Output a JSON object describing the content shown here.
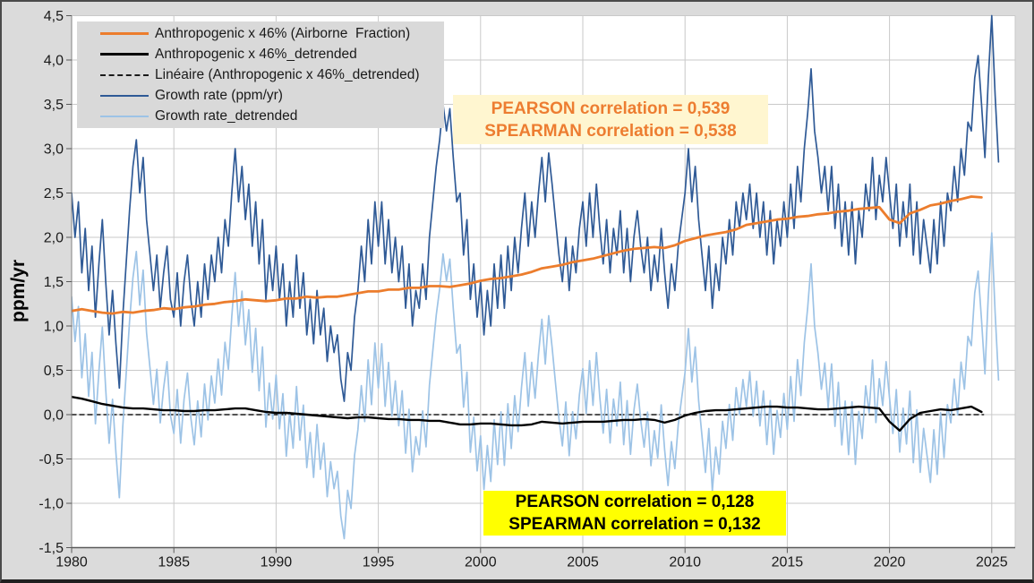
{
  "figure": {
    "background": "#DBDBDB",
    "plot_background": "#FFFFFF",
    "gridline_color": "#C9C9C9",
    "axis_line_color": "#808080",
    "tick_color": "#595959",
    "tick_text_color": "#1a1a1a",
    "y_axis_title": "ppm/yr"
  },
  "legend": {
    "items": [
      {
        "label": "Anthropogenic x 46% (Airborne  Fraction)",
        "color": "#EC7D2D",
        "style": "solid",
        "thickness": 3
      },
      {
        "label": "Anthropogenic x 46%_detrended",
        "color": "#000000",
        "style": "solid",
        "thickness": 3
      },
      {
        "label": "Linéaire (Anthropogenic x 46%_detrended)",
        "color": "#1a1a1a",
        "style": "dashed",
        "thickness": 2
      },
      {
        "label": "Growth rate (ppm/yr)",
        "color": "#2F5A96",
        "style": "solid",
        "thickness": 2
      },
      {
        "label": "Growth rate_detrended",
        "color": "#9DC3E6",
        "style": "solid",
        "thickness": 2
      }
    ]
  },
  "annotations": [
    {
      "line1": "PEARSON correlation = 0,539",
      "line2": "SPEARMAN correlation = 0,538",
      "text_color": "#ED7D31",
      "background": "#FFF6D0"
    },
    {
      "line1": "PEARSON correlation = 0,128",
      "line2": "SPEARMAN correlation = 0,132",
      "text_color": "#000000",
      "background": "#FFFF00"
    }
  ],
  "chart_data": {
    "type": "line",
    "title": "",
    "ylabel": "ppm/yr",
    "grid": true,
    "x_axis": {
      "min": 1980,
      "max": 2026.2
    },
    "y_axis": {
      "min": -1.5,
      "max": 4.5,
      "tick_step": 0.5
    },
    "x_ticks": [
      {
        "value": 1980,
        "label": "1980"
      },
      {
        "value": 1985,
        "label": "1985"
      },
      {
        "value": 1990,
        "label": "1990"
      },
      {
        "value": 1995,
        "label": "1995"
      },
      {
        "value": 2000,
        "label": "2000"
      },
      {
        "value": 2005,
        "label": "2005"
      },
      {
        "value": 2010,
        "label": "2010"
      },
      {
        "value": 2015,
        "label": "2015"
      },
      {
        "value": 2020,
        "label": "2020"
      },
      {
        "value": 2025,
        "label": "2025"
      }
    ],
    "y_ticks": [
      {
        "value": 4.5,
        "label": "4,5"
      },
      {
        "value": 4.0,
        "label": "4,0"
      },
      {
        "value": 3.5,
        "label": "3,5"
      },
      {
        "value": 3.0,
        "label": "3,0"
      },
      {
        "value": 2.5,
        "label": "2,5"
      },
      {
        "value": 2.0,
        "label": "2,0"
      },
      {
        "value": 1.5,
        "label": "1,5"
      },
      {
        "value": 1.0,
        "label": "1,0"
      },
      {
        "value": 0.5,
        "label": "0,5"
      },
      {
        "value": 0.0,
        "label": "0,0"
      },
      {
        "value": -0.5,
        "label": "-0,5"
      },
      {
        "value": -1.0,
        "label": "-1,0"
      },
      {
        "value": -1.5,
        "label": "-1,5"
      }
    ],
    "series": [
      {
        "name": "Anthropogenic x 46% (Airborne  Fraction)",
        "color": "#EC7D2D",
        "width": 2.8,
        "start": 1980,
        "step": 0.5,
        "values": [
          1.17,
          1.19,
          1.17,
          1.15,
          1.14,
          1.16,
          1.15,
          1.17,
          1.18,
          1.2,
          1.19,
          1.21,
          1.22,
          1.24,
          1.25,
          1.27,
          1.28,
          1.3,
          1.29,
          1.28,
          1.29,
          1.31,
          1.31,
          1.33,
          1.32,
          1.33,
          1.33,
          1.35,
          1.37,
          1.39,
          1.39,
          1.41,
          1.41,
          1.43,
          1.43,
          1.45,
          1.45,
          1.44,
          1.46,
          1.48,
          1.51,
          1.53,
          1.54,
          1.56,
          1.58,
          1.61,
          1.65,
          1.67,
          1.69,
          1.72,
          1.74,
          1.76,
          1.79,
          1.82,
          1.85,
          1.87,
          1.88,
          1.89,
          1.88,
          1.91,
          1.96,
          1.99,
          2.02,
          2.04,
          2.06,
          2.09,
          2.14,
          2.16,
          2.18,
          2.2,
          2.21,
          2.23,
          2.24,
          2.26,
          2.27,
          2.29,
          2.3,
          2.32,
          2.33,
          2.34,
          2.2,
          2.16,
          2.27,
          2.31,
          2.36,
          2.38,
          2.41,
          2.43,
          2.46,
          2.45
        ]
      },
      {
        "name": "Anthropogenic x 46%_detrended",
        "color": "#000000",
        "width": 2.4,
        "start": 1980,
        "step": 0.5,
        "values": [
          0.2,
          0.18,
          0.15,
          0.12,
          0.1,
          0.08,
          0.07,
          0.07,
          0.06,
          0.05,
          0.05,
          0.04,
          0.04,
          0.05,
          0.05,
          0.06,
          0.07,
          0.07,
          0.05,
          0.03,
          0.02,
          0.02,
          0.01,
          0.0,
          -0.01,
          -0.02,
          -0.03,
          -0.04,
          -0.03,
          -0.03,
          -0.04,
          -0.05,
          -0.05,
          -0.06,
          -0.06,
          -0.07,
          -0.07,
          -0.09,
          -0.11,
          -0.11,
          -0.1,
          -0.1,
          -0.11,
          -0.12,
          -0.12,
          -0.11,
          -0.08,
          -0.09,
          -0.1,
          -0.09,
          -0.08,
          -0.08,
          -0.08,
          -0.07,
          -0.06,
          -0.06,
          -0.05,
          -0.06,
          -0.09,
          -0.06,
          -0.01,
          0.02,
          0.04,
          0.05,
          0.05,
          0.06,
          0.07,
          0.08,
          0.09,
          0.09,
          0.08,
          0.08,
          0.07,
          0.06,
          0.06,
          0.07,
          0.08,
          0.09,
          0.08,
          0.07,
          -0.08,
          -0.18,
          -0.05,
          0.02,
          0.04,
          0.06,
          0.05,
          0.07,
          0.09,
          0.03
        ]
      },
      {
        "name": "Linéaire (Anthropogenic x 46%_detrended)",
        "color": "#1a1a1a",
        "width": 1.4,
        "dash": "5,4",
        "line": {
          "x0": 1980,
          "y0": 0.0,
          "x1": 2024.6,
          "y1": 0.0
        }
      },
      {
        "name": "Growth rate (ppm/yr)",
        "color": "#2F5A96",
        "width": 1.7,
        "start": 1980,
        "step": 0.1666667,
        "values": [
          2.5,
          2.0,
          2.4,
          1.6,
          2.1,
          1.4,
          1.9,
          1.1,
          1.7,
          2.2,
          1.5,
          0.9,
          1.4,
          0.8,
          0.3,
          1.1,
          1.7,
          2.3,
          2.8,
          3.1,
          2.5,
          2.9,
          2.2,
          1.8,
          1.4,
          1.8,
          1.2,
          1.6,
          1.9,
          1.3,
          1.1,
          1.6,
          1.0,
          1.5,
          1.8,
          1.3,
          1.0,
          1.5,
          1.1,
          1.7,
          1.3,
          1.8,
          1.5,
          2.0,
          1.6,
          2.2,
          1.9,
          2.5,
          3.0,
          2.4,
          2.8,
          2.2,
          2.6,
          1.9,
          2.4,
          1.7,
          2.2,
          1.3,
          1.8,
          1.4,
          1.9,
          1.3,
          1.7,
          1.0,
          1.5,
          1.1,
          1.8,
          1.2,
          1.6,
          0.9,
          1.3,
          0.8,
          1.4,
          0.9,
          1.2,
          0.6,
          1.0,
          0.7,
          0.9,
          0.4,
          0.15,
          0.7,
          0.5,
          1.1,
          1.4,
          1.9,
          1.5,
          2.2,
          1.7,
          2.4,
          1.9,
          2.4,
          1.7,
          2.2,
          1.6,
          2.0,
          1.5,
          1.9,
          1.2,
          1.7,
          1.0,
          1.4,
          1.2,
          1.7,
          1.3,
          2.0,
          2.4,
          2.8,
          3.1,
          3.5,
          3.2,
          3.45,
          2.9,
          2.4,
          2.5,
          1.8,
          2.2,
          1.3,
          1.7,
          1.1,
          1.5,
          0.9,
          1.4,
          1.0,
          1.7,
          1.2,
          1.8,
          1.2,
          1.9,
          1.4,
          2.0,
          1.6,
          2.1,
          2.5,
          1.9,
          2.4,
          2.0,
          2.5,
          2.9,
          2.4,
          2.95,
          2.6,
          2.2,
          1.8,
          1.5,
          2.0,
          1.4,
          1.9,
          1.6,
          2.1,
          2.4,
          1.9,
          2.5,
          2.0,
          2.6,
          2.1,
          1.7,
          2.2,
          1.6,
          2.1,
          1.8,
          2.3,
          1.6,
          2.1,
          1.5,
          2.0,
          2.3,
          1.9,
          1.6,
          2.0,
          1.4,
          1.8,
          1.5,
          2.1,
          1.6,
          1.2,
          1.7,
          1.4,
          1.9,
          2.2,
          2.5,
          3.0,
          2.4,
          2.8,
          2.2,
          1.8,
          1.4,
          1.9,
          1.2,
          1.7,
          1.4,
          2.0,
          1.7,
          2.2,
          1.8,
          2.4,
          2.1,
          2.5,
          2.2,
          2.6,
          2.1,
          2.5,
          2.0,
          2.4,
          1.8,
          2.3,
          1.7,
          2.2,
          1.9,
          2.4,
          2.0,
          2.6,
          2.1,
          2.8,
          2.4,
          3.0,
          3.4,
          3.9,
          3.2,
          2.9,
          2.5,
          2.8,
          2.3,
          2.8,
          2.1,
          2.6,
          1.9,
          2.4,
          1.8,
          2.4,
          1.7,
          2.3,
          2.0,
          2.6,
          2.3,
          2.9,
          2.2,
          2.7,
          2.4,
          2.9,
          2.5,
          2.1,
          2.6,
          1.9,
          2.4,
          2.0,
          2.6,
          1.8,
          2.4,
          1.7,
          2.2,
          1.9,
          1.6,
          2.2,
          1.7,
          2.4,
          1.9,
          2.5,
          2.3,
          2.8,
          2.4,
          3.0,
          2.7,
          3.3,
          3.2,
          3.8,
          4.05,
          3.5,
          2.9,
          3.8,
          4.5,
          3.6,
          2.85
        ]
      },
      {
        "name": "Growth rate_detrended",
        "color": "#9DC3E6",
        "width": 1.7,
        "derived_from": 3,
        "detrend": {
          "t0": 1980,
          "v0": 1.17,
          "t1": 2025,
          "v1": 2.45
        }
      }
    ],
    "draw_order": [
      2,
      4,
      3,
      0,
      1
    ],
    "correlations": {
      "growth_vs_anthropogenic": {
        "pearson": "0,539",
        "spearman": "0,538"
      },
      "detrended": {
        "pearson": "0,128",
        "spearman": "0,132"
      }
    }
  }
}
